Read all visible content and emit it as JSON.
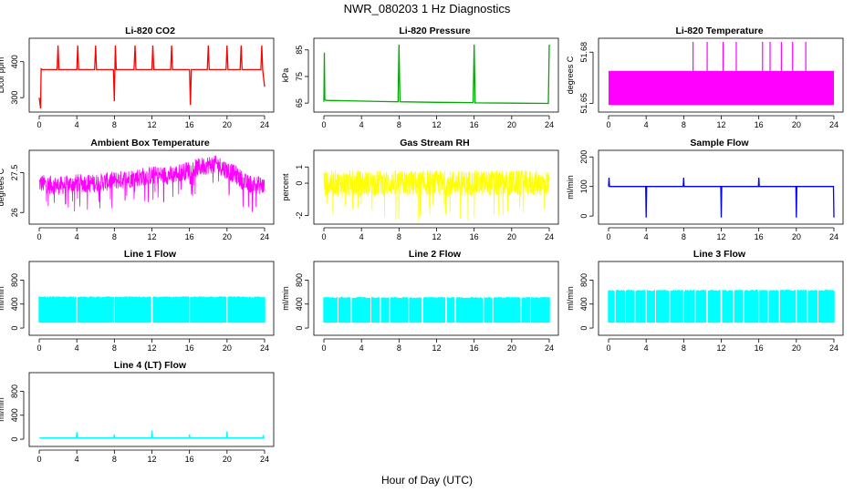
{
  "figure": {
    "title": "NWR_080203  1 Hz Diagnostics",
    "xlabel": "Hour of Day (UTC)"
  },
  "chart_data": [
    {
      "type": "line",
      "title": "Li-820 CO2",
      "ylabel": "Licor ppm",
      "color": "#ff0000",
      "xlim": [
        0,
        24
      ],
      "ylim": [
        270,
        455
      ],
      "xticks": [
        0,
        4,
        8,
        12,
        16,
        20,
        24
      ],
      "yticks": [
        300,
        400
      ],
      "series": [
        {
          "x": [
            0,
            0.15,
            0.2,
            0.3,
            1.9,
            2.0,
            2.1,
            4.0,
            4.1,
            4.2,
            5.9,
            6.0,
            6.1,
            7.9,
            8.0,
            8.1,
            8.2,
            10.1,
            10.2,
            10.3,
            12.0,
            12.1,
            12.2,
            14.0,
            14.1,
            14.2,
            16.0,
            16.1,
            16.2,
            17.9,
            18.0,
            18.1,
            19.9,
            20.0,
            20.1,
            21.4,
            21.5,
            21.6,
            23.6,
            23.7,
            23.8,
            24.0
          ],
          "y": [
            300,
            270,
            380,
            378,
            378,
            445,
            378,
            378,
            445,
            378,
            378,
            445,
            378,
            378,
            290,
            445,
            378,
            378,
            445,
            378,
            378,
            445,
            378,
            378,
            445,
            378,
            378,
            280,
            378,
            378,
            445,
            378,
            378,
            445,
            378,
            378,
            445,
            378,
            378,
            445,
            378,
            330
          ]
        }
      ]
    },
    {
      "type": "line",
      "title": "Li-820 Pressure",
      "ylabel": "kPa",
      "color": "#00aa00",
      "xlim": [
        0,
        24
      ],
      "ylim": [
        63,
        88
      ],
      "xticks": [
        0,
        4,
        8,
        12,
        16,
        20,
        24
      ],
      "yticks": [
        65,
        75,
        85
      ],
      "series": [
        {
          "x": [
            0,
            0.05,
            0.1,
            0.2,
            2,
            6,
            7.9,
            8.0,
            8.1,
            12,
            15.9,
            16.0,
            16.1,
            20,
            23.9,
            24.0
          ],
          "y": [
            65.5,
            84,
            66.5,
            66,
            65.9,
            65.6,
            65.5,
            87,
            65.5,
            65.3,
            65.2,
            87,
            65.1,
            65.0,
            64.9,
            87
          ]
        }
      ]
    },
    {
      "type": "area",
      "title": "Li-820 Temperature",
      "ylabel": "degrees C",
      "color": "#ff00ff",
      "xlim": [
        0,
        24
      ],
      "ylim": [
        51.647,
        51.686
      ],
      "xticks": [
        0,
        4,
        8,
        12,
        16,
        20,
        24
      ],
      "yticks": [
        51.65,
        51.68
      ],
      "band": [
        51.649,
        51.669
      ],
      "spikes_x": [
        9.0,
        10.5,
        12.2,
        13.6,
        16.4,
        17.2,
        18.4,
        19.6,
        21.0
      ],
      "spike_top": 51.686
    },
    {
      "type": "line",
      "title": "Ambient Box Temperature",
      "ylabel": "degrees C",
      "color": "#ff00ff",
      "xlim": [
        0,
        24
      ],
      "ylim": [
        25.7,
        28.2
      ],
      "xticks": [
        0,
        4,
        8,
        12,
        16,
        20,
        24
      ],
      "yticks": [
        26.0,
        27.5
      ],
      "series": [
        {
          "x": [
            0,
            2,
            4,
            6,
            8,
            10,
            12,
            14,
            16,
            17,
            18,
            19,
            20,
            21,
            22,
            24
          ],
          "y": [
            27.1,
            27.0,
            27.1,
            27.1,
            27.2,
            27.3,
            27.4,
            27.4,
            27.6,
            27.7,
            27.8,
            27.8,
            27.6,
            27.4,
            27.1,
            27.0
          ]
        }
      ]
    },
    {
      "type": "line",
      "title": "Gas Stream RH",
      "ylabel": "percent",
      "color": "#ffff00",
      "xlim": [
        0,
        24
      ],
      "ylim": [
        -2.3,
        1.8
      ],
      "xticks": [
        0,
        4,
        8,
        12,
        16,
        20,
        24
      ],
      "yticks": [
        -2,
        0,
        1
      ],
      "series": [
        {
          "x": [
            0,
            24
          ],
          "y": [
            0,
            0
          ]
        }
      ]
    },
    {
      "type": "line",
      "title": "Sample Flow",
      "ylabel": "ml/min",
      "color": "#0000ff",
      "xlim": [
        0,
        24
      ],
      "ylim": [
        -15,
        210
      ],
      "xticks": [
        0,
        4,
        8,
        12,
        16,
        20,
        24
      ],
      "yticks": [
        0,
        100,
        200
      ],
      "series": [
        {
          "x": [
            0,
            0.05,
            0.1,
            3.95,
            4.0,
            4.05,
            7.95,
            8.0,
            8.05,
            11.95,
            12.0,
            12.05,
            15.95,
            16.0,
            16.05,
            19.95,
            20.0,
            20.05,
            23.95,
            24.0
          ],
          "y": [
            100,
            130,
            100,
            100,
            -5,
            100,
            100,
            130,
            100,
            100,
            -5,
            100,
            100,
            130,
            100,
            100,
            -5,
            100,
            100,
            -5
          ]
        }
      ]
    },
    {
      "type": "area",
      "title": "Line 1 Flow",
      "ylabel": "ml/min",
      "color": "#00ffff",
      "xlim": [
        0,
        24
      ],
      "ylim": [
        -60,
        1050
      ],
      "xticks": [
        0,
        4,
        8,
        12,
        16,
        20,
        24
      ],
      "yticks": [
        0,
        400,
        800
      ],
      "band": [
        90,
        530
      ],
      "gaps_x": [
        4,
        8,
        12,
        16,
        20
      ]
    },
    {
      "type": "area",
      "title": "Line 2 Flow",
      "ylabel": "ml/min",
      "color": "#00ffff",
      "xlim": [
        0,
        24
      ],
      "ylim": [
        -60,
        1050
      ],
      "xticks": [
        0,
        4,
        8,
        12,
        16,
        20,
        24
      ],
      "yticks": [
        0,
        400,
        800
      ],
      "band": [
        90,
        520
      ],
      "gaps_x": [
        1.5,
        2.9,
        5.0,
        6.0,
        7.0,
        9.0,
        10.5,
        13.0,
        14.0,
        17.0,
        18.0,
        21.0,
        22.0
      ]
    },
    {
      "type": "area",
      "title": "Line 3 Flow",
      "ylabel": "ml/min",
      "color": "#00ffff",
      "xlim": [
        0,
        24
      ],
      "ylim": [
        -60,
        1050
      ],
      "xticks": [
        0,
        4,
        8,
        12,
        16,
        20,
        24
      ],
      "yticks": [
        0,
        400,
        800
      ],
      "band": [
        90,
        640
      ],
      "gaps_x": [
        0.7,
        1.8,
        2.8,
        4.0,
        5.0,
        6.5,
        8.0,
        9.2,
        10.5,
        12.0,
        13.3,
        14.4,
        16.0,
        17.0,
        18.2,
        20.0,
        21.2,
        22.3
      ]
    },
    {
      "type": "line",
      "title": "Line 4 (LT) Flow",
      "ylabel": "ml/min",
      "color": "#00ffff",
      "xlim": [
        0,
        24
      ],
      "ylim": [
        -60,
        1050
      ],
      "xticks": [
        0,
        4,
        8,
        12,
        16,
        20,
        24
      ],
      "yticks": [
        0,
        400,
        800
      ],
      "series": [
        {
          "x": [
            0,
            3.95,
            4.0,
            4.05,
            7.95,
            8.0,
            8.05,
            11.95,
            12.0,
            12.05,
            15.95,
            16.0,
            16.05,
            19.95,
            20.0,
            20.05,
            23.8,
            23.85,
            23.9,
            24.0
          ],
          "y": [
            20,
            20,
            120,
            20,
            20,
            80,
            20,
            20,
            140,
            20,
            20,
            80,
            20,
            20,
            130,
            20,
            20,
            70,
            20,
            20
          ]
        }
      ]
    }
  ]
}
